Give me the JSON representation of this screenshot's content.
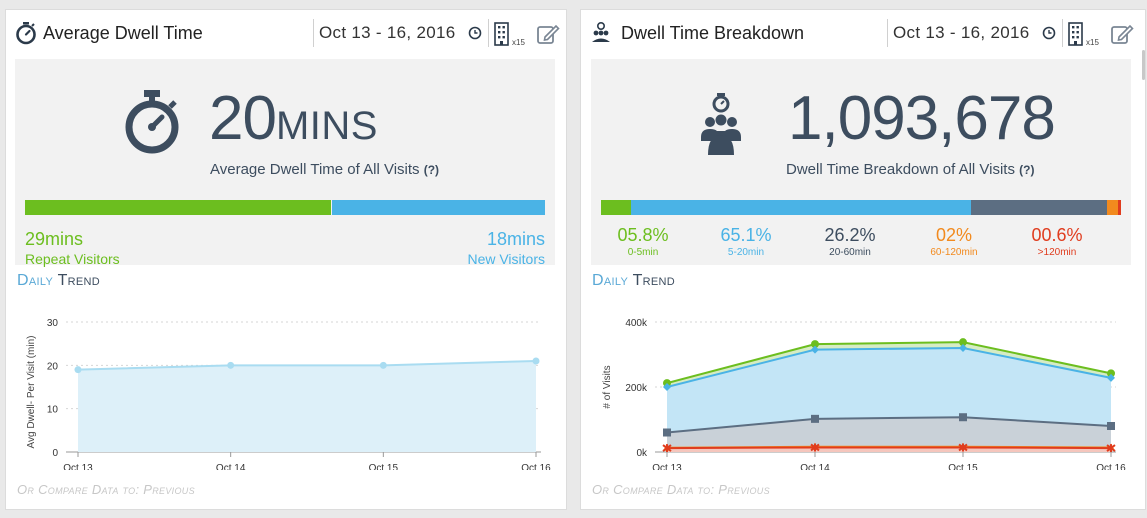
{
  "colors": {
    "green": "#6cbe1f",
    "blue": "#4ab3e6",
    "slate": "#5c6e82",
    "orange": "#f28a1e",
    "red": "#e03c1e",
    "dark_text": "#3d4d5f"
  },
  "left": {
    "header": {
      "title": "Average Dwell Time",
      "date_range": "Oct 13 - 16, 2016",
      "building_count": "x15"
    },
    "summary": {
      "value": "20",
      "unit": "MINS",
      "caption": "Average Dwell Time of All Visits",
      "help": "(?)",
      "repeat_pct": 0.59,
      "repeat_value": "29mins",
      "repeat_label": "Repeat Visitors",
      "new_value": "18mins",
      "new_label": "New Visitors"
    },
    "trend": {
      "title_first": "Daily",
      "title_rest": "Trend"
    },
    "compare": "Or Compare Data to: Previous",
    "chart_data": {
      "type": "area",
      "x": [
        "Oct 13",
        "Oct 14",
        "Oct 15",
        "Oct 16"
      ],
      "series": [
        {
          "name": "Avg Dwell- Per Visit (min)",
          "values": [
            19,
            20,
            20,
            21
          ]
        }
      ],
      "ylabel": "Avg Dwell- Per Visit (min)",
      "ylim": [
        0,
        30
      ],
      "yticks": [
        "0",
        "10",
        "20",
        "30"
      ],
      "grid": true
    }
  },
  "right": {
    "header": {
      "title": "Dwell Time Breakdown",
      "date_range": "Oct 13 - 16, 2016",
      "building_count": "x15"
    },
    "summary": {
      "value": "1,093,678",
      "caption": "Dwell Time Breakdown of All Visits",
      "help": "(?)",
      "segments": [
        {
          "value": "05.8%",
          "label": "0-5min",
          "fraction": 0.058
        },
        {
          "value": "65.1%",
          "label": "5-20min",
          "fraction": 0.651
        },
        {
          "value": "26.2%",
          "label": "20-60min",
          "fraction": 0.262
        },
        {
          "value": "02%",
          "label": "60-120min",
          "fraction": 0.02
        },
        {
          "value": "00.6%",
          "label": ">120min",
          "fraction": 0.006
        }
      ]
    },
    "trend": {
      "title_first": "Daily",
      "title_rest": "Trend"
    },
    "compare": "Or Compare Data to: Previous",
    "chart_data": {
      "type": "area",
      "x": [
        "Oct 13",
        "Oct 14",
        "Oct 15",
        "Oct 16"
      ],
      "ylabel": "# of Visits",
      "ylim": [
        0,
        400000
      ],
      "yticks": [
        "0k",
        "200k",
        "400k"
      ],
      "grid": true,
      "series": [
        {
          "name": ">120min",
          "values": [
            12000,
            14000,
            14000,
            12000
          ]
        },
        {
          "name": "60-120min",
          "values": [
            13000,
            16000,
            16000,
            14000
          ]
        },
        {
          "name": "20-60min",
          "values": [
            60000,
            102000,
            107000,
            80000
          ]
        },
        {
          "name": "5-20min",
          "values": [
            200000,
            315000,
            320000,
            228000
          ]
        },
        {
          "name": "0-5min",
          "values": [
            212000,
            332000,
            338000,
            242000
          ]
        }
      ]
    }
  }
}
